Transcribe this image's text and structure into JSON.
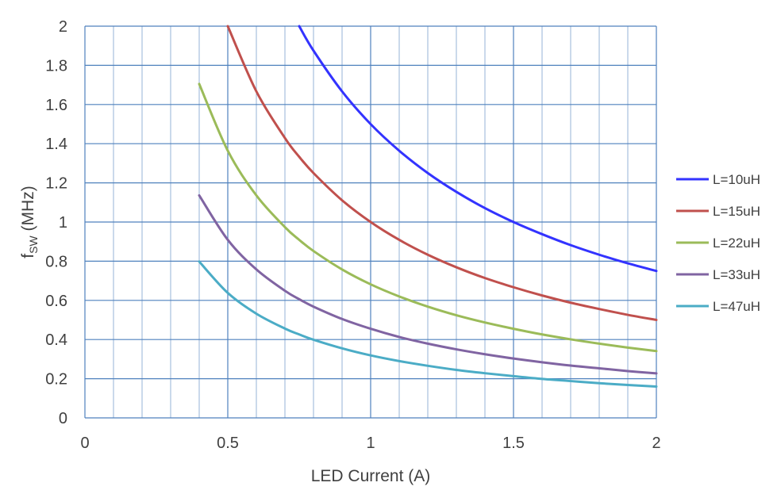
{
  "chart_data": {
    "type": "line",
    "title": "",
    "xlabel": "LED Current (A)",
    "ylabel_main": "f",
    "ylabel_sub": "SW",
    "ylabel_unit": " (MHz)",
    "xlim": [
      0,
      2
    ],
    "ylim": [
      0,
      2
    ],
    "x_ticks": [
      0,
      0.5,
      1,
      1.5,
      2
    ],
    "x_tick_labels": [
      "0",
      "0.5",
      "1",
      "1.5",
      "2"
    ],
    "y_ticks": [
      0,
      0.2,
      0.4,
      0.6,
      0.8,
      1,
      1.2,
      1.4,
      1.6,
      1.8,
      2
    ],
    "y_tick_labels": [
      "0",
      "0.2",
      "0.4",
      "0.6",
      "0.8",
      "1",
      "1.2",
      "1.4",
      "1.6",
      "1.8",
      "2"
    ],
    "grid": true,
    "minor_grid_step": 0.1,
    "legend_position": "right",
    "x": [
      0.4,
      0.5,
      0.6,
      0.7,
      0.75,
      0.8,
      0.9,
      1.0,
      1.1,
      1.2,
      1.3,
      1.4,
      1.5,
      1.6,
      1.7,
      1.8,
      1.9,
      2.0
    ],
    "series": [
      {
        "name": "L=10uH",
        "color": "#3333ff",
        "values": [
          null,
          null,
          null,
          null,
          2.0,
          1.875,
          1.667,
          1.5,
          1.364,
          1.25,
          1.154,
          1.071,
          1.0,
          0.938,
          0.882,
          0.833,
          0.789,
          0.75
        ]
      },
      {
        "name": "L=15uH",
        "color": "#c0504d",
        "values": [
          null,
          2.0,
          1.667,
          1.429,
          1.333,
          1.25,
          1.111,
          1.0,
          0.909,
          0.833,
          0.769,
          0.714,
          0.667,
          0.625,
          0.588,
          0.556,
          0.526,
          0.5
        ]
      },
      {
        "name": "L=22uH",
        "color": "#9bbb59",
        "values": [
          1.705,
          1.364,
          1.136,
          0.974,
          0.909,
          0.852,
          0.758,
          0.682,
          0.62,
          0.568,
          0.524,
          0.487,
          0.455,
          0.426,
          0.401,
          0.379,
          0.359,
          0.341
        ]
      },
      {
        "name": "L=33uH",
        "color": "#8064a2",
        "values": [
          1.136,
          0.909,
          0.758,
          0.649,
          0.606,
          0.568,
          0.505,
          0.455,
          0.413,
          0.379,
          0.35,
          0.325,
          0.303,
          0.284,
          0.267,
          0.253,
          0.239,
          0.227
        ]
      },
      {
        "name": "L=47uH",
        "color": "#4bacc6",
        "values": [
          0.798,
          0.638,
          0.532,
          0.456,
          0.426,
          0.399,
          0.355,
          0.319,
          0.29,
          0.266,
          0.245,
          0.228,
          0.213,
          0.199,
          0.188,
          0.177,
          0.168,
          0.16
        ]
      }
    ]
  }
}
